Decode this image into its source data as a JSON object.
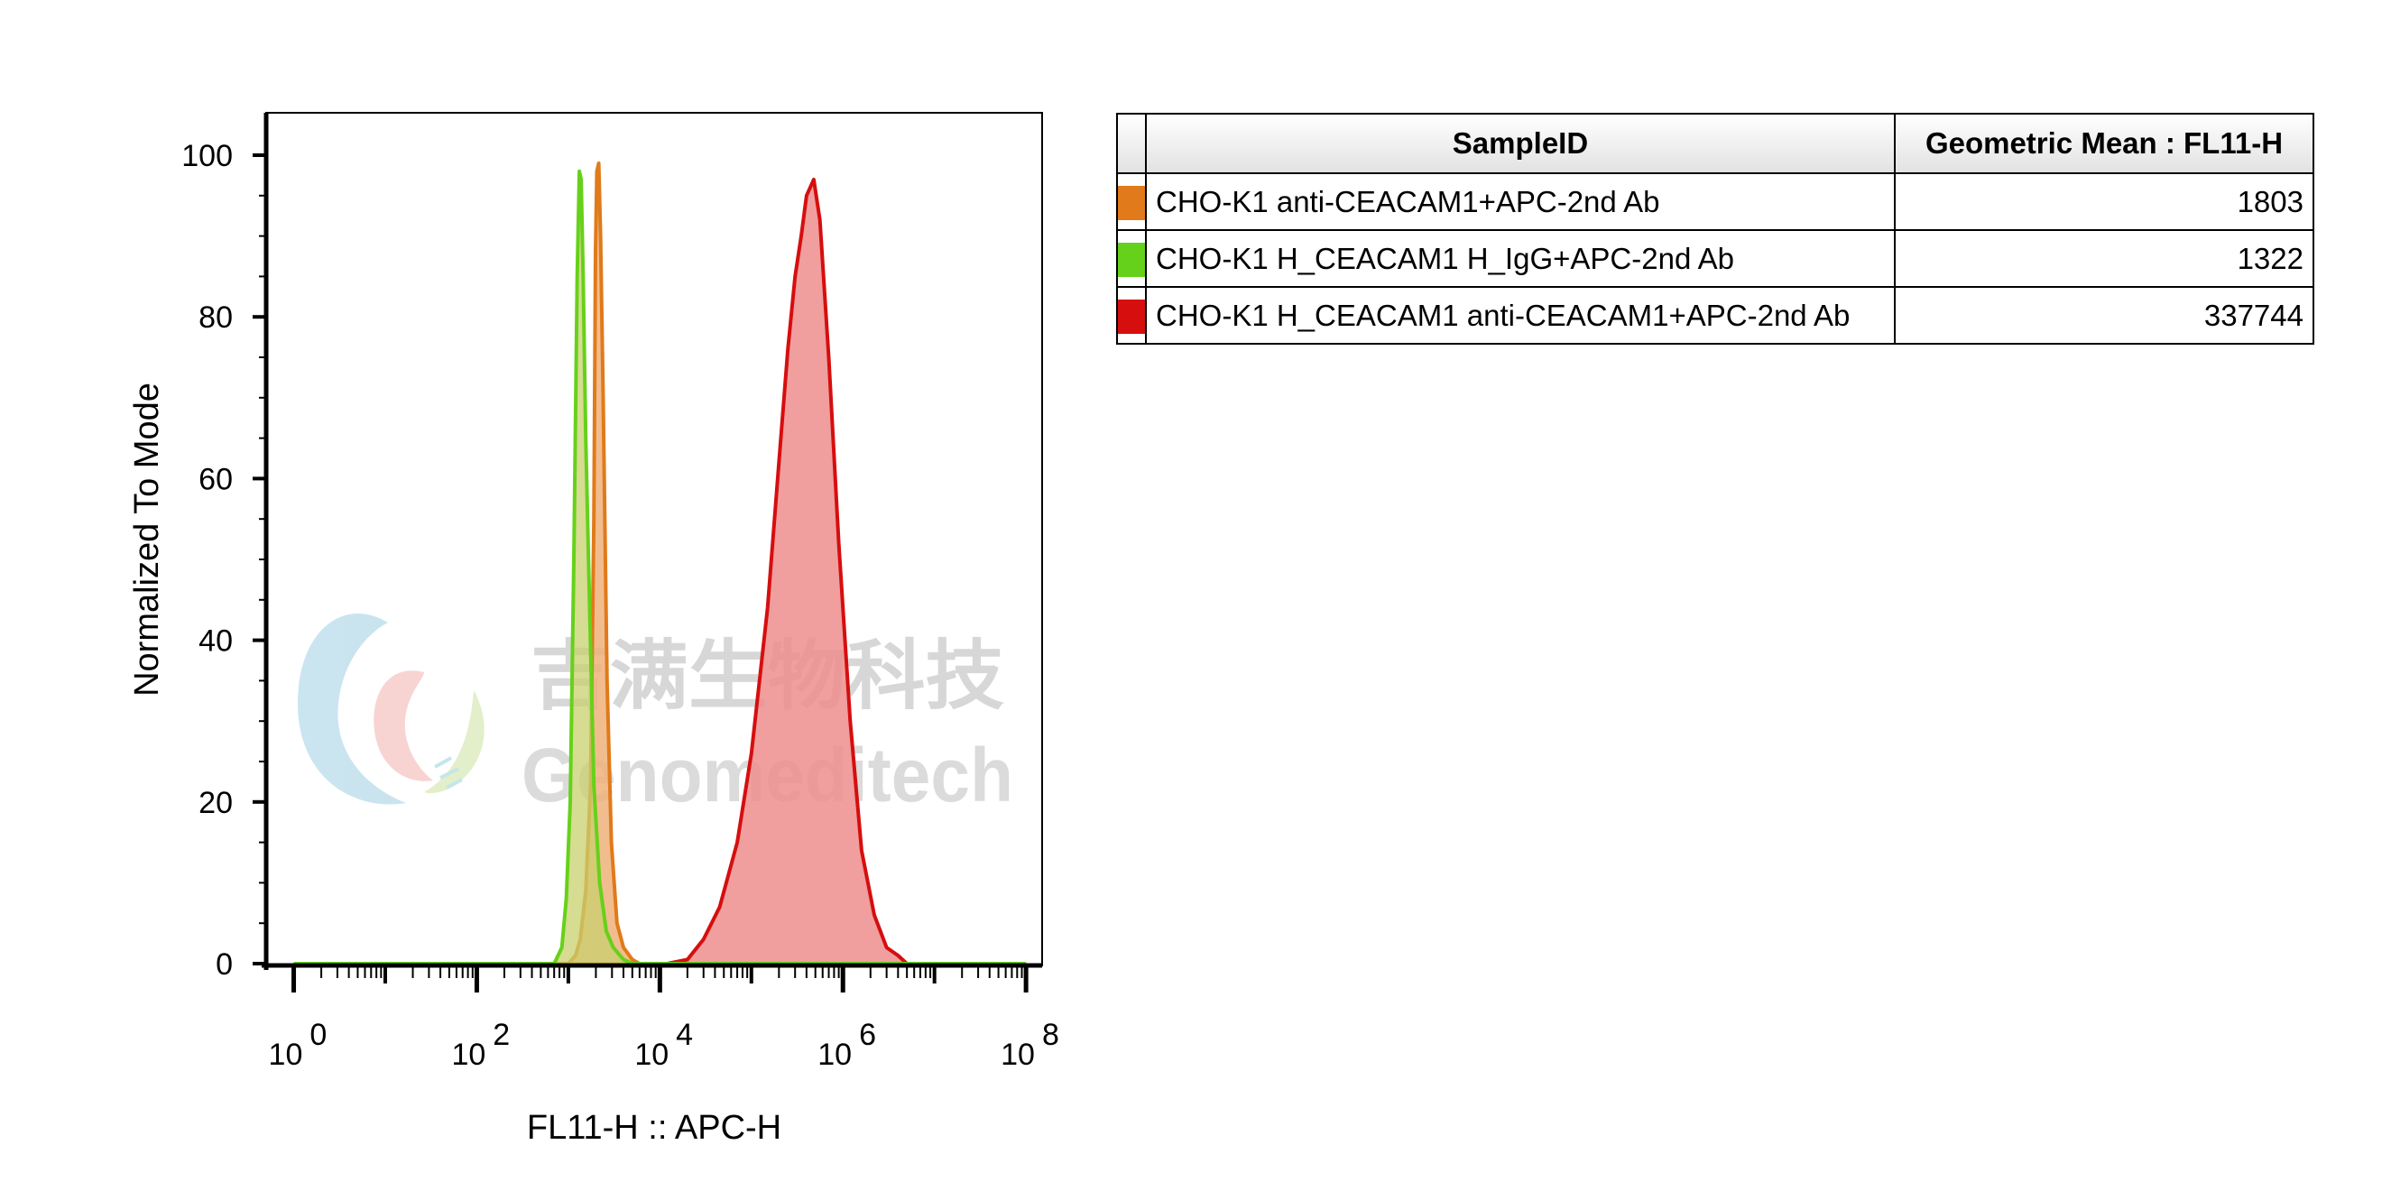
{
  "chart_data": {
    "type": "area",
    "xlabel": "FL11-H :: APC-H",
    "ylabel": "Normalized To Mode",
    "x_scale": "log10",
    "xlim": [
      0.5,
      150000000
    ],
    "ylim": [
      0,
      100
    ],
    "x_ticks": [
      {
        "base": "10",
        "exp": "0",
        "value": 1
      },
      {
        "base": "10",
        "exp": "2",
        "value": 100
      },
      {
        "base": "10",
        "exp": "4",
        "value": 10000
      },
      {
        "base": "10",
        "exp": "6",
        "value": 1000000
      },
      {
        "base": "10",
        "exp": "8",
        "value": 100000000
      }
    ],
    "y_ticks": [
      "0",
      "20",
      "40",
      "60",
      "80",
      "100"
    ],
    "series": [
      {
        "name": "CHO-K1 anti-CEACAM1+APC-2nd Ab",
        "stroke": "#e07a1a",
        "fill": "#f0b27a",
        "x": [
          1,
          1000,
          1200,
          1350,
          1550,
          1750,
          1900,
          1980,
          2050,
          2150,
          2250,
          2400,
          2650,
          2950,
          3400,
          4000,
          5000,
          6000,
          100000000
        ],
        "y": [
          0,
          0,
          1,
          3,
          9,
          22,
          55,
          88,
          98,
          99,
          90,
          70,
          35,
          15,
          5,
          2,
          0.5,
          0,
          0
        ]
      },
      {
        "name": "CHO-K1 H_CEACAM1 H_IgG+APC-2nd Ab",
        "stroke": "#66d11a",
        "fill": "#c8d06c",
        "x": [
          1,
          700,
          850,
          950,
          1050,
          1150,
          1250,
          1320,
          1380,
          1450,
          1550,
          1700,
          1900,
          2200,
          2600,
          3100,
          4000,
          5000,
          100000000
        ],
        "y": [
          0,
          0,
          2,
          8,
          20,
          50,
          85,
          98,
          97,
          85,
          65,
          45,
          22,
          10,
          4,
          2,
          0.5,
          0,
          0
        ]
      },
      {
        "name": "CHO-K1 H_CEACAM1 anti-CEACAM1+APC-2nd Ab",
        "stroke": "#d60e0e",
        "fill": "#ed8d8d",
        "x": [
          1,
          12000,
          20000,
          30000,
          45000,
          70000,
          100000,
          150000,
          200000,
          250000,
          300000,
          350000,
          400000,
          480000,
          560000,
          700000,
          900000,
          1200000,
          1600000,
          2200000,
          3000000,
          4000000,
          5000000,
          100000000
        ],
        "y": [
          0,
          0,
          0.5,
          3,
          7,
          15,
          26,
          44,
          62,
          76,
          85,
          90,
          95,
          97,
          92,
          75,
          52,
          30,
          14,
          6,
          2,
          1,
          0,
          0
        ]
      }
    ]
  },
  "legend": {
    "header_sample": "SampleID",
    "header_value": "Geometric Mean : FL11-H",
    "rows": [
      {
        "label": "CHO-K1 anti-CEACAM1+APC-2nd Ab",
        "value": "1803",
        "color": "#e07a1a"
      },
      {
        "label": "CHO-K1 H_CEACAM1 H_IgG+APC-2nd Ab",
        "value": "1322",
        "color": "#66d11a"
      },
      {
        "label": "CHO-K1 H_CEACAM1 anti-CEACAM1+APC-2nd Ab",
        "value": "337744",
        "color": "#d60e0e"
      }
    ]
  },
  "watermark": {
    "chinese": "吉满生物科技",
    "english": "Genomeditech"
  }
}
